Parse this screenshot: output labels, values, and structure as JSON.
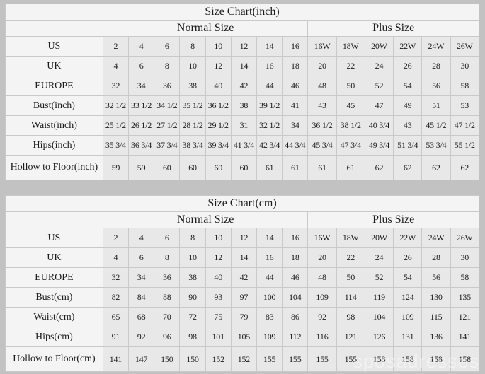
{
  "watermark": {
    "text": "sposadresses"
  },
  "colors": {
    "page_background": "#c2c2c2",
    "header_cell_background": "#f4f4f4",
    "value_cell_background": "#e8e8e8",
    "grid_border": "#c9c9c9",
    "text": "#1c1c1c"
  },
  "chart_data": [
    {
      "type": "table",
      "title": "Size Chart(inch)",
      "column_groups": [
        {
          "label": "Normal Size",
          "span": 8
        },
        {
          "label": "Plus Size",
          "span": 6
        }
      ],
      "rows": [
        {
          "label": "US",
          "values": [
            "2",
            "4",
            "6",
            "8",
            "10",
            "12",
            "14",
            "16",
            "16W",
            "18W",
            "20W",
            "22W",
            "24W",
            "26W"
          ]
        },
        {
          "label": "UK",
          "values": [
            "4",
            "6",
            "8",
            "10",
            "12",
            "14",
            "16",
            "18",
            "20",
            "22",
            "24",
            "26",
            "28",
            "30"
          ]
        },
        {
          "label": "EUROPE",
          "values": [
            "32",
            "34",
            "36",
            "38",
            "40",
            "42",
            "44",
            "46",
            "48",
            "50",
            "52",
            "54",
            "56",
            "58"
          ]
        },
        {
          "label": "Bust(inch)",
          "values": [
            "32 1/2",
            "33 1/2",
            "34 1/2",
            "35 1/2",
            "36 1/2",
            "38",
            "39 1/2",
            "41",
            "43",
            "45",
            "47",
            "49",
            "51",
            "53"
          ]
        },
        {
          "label": "Waist(inch)",
          "values": [
            "25 1/2",
            "26 1/2",
            "27 1/2",
            "28 1/2",
            "29 1/2",
            "31",
            "32 1/2",
            "34",
            "36 1/2",
            "38 1/2",
            "40 3/4",
            "43",
            "45 1/2",
            "47 1/2"
          ]
        },
        {
          "label": "Hips(inch)",
          "values": [
            "35 3/4",
            "36 3/4",
            "37 3/4",
            "38 3/4",
            "39 3/4",
            "41 3/4",
            "42 3/4",
            "44 3/4",
            "45 3/4",
            "47 3/4",
            "49 3/4",
            "51 3/4",
            "53 3/4",
            "55 1/2"
          ]
        },
        {
          "label": "Hollow to Floor(inch)",
          "values": [
            "59",
            "59",
            "60",
            "60",
            "60",
            "60",
            "61",
            "61",
            "61",
            "61",
            "62",
            "62",
            "62",
            "62"
          ]
        }
      ]
    },
    {
      "type": "table",
      "title": "Size Chart(cm)",
      "column_groups": [
        {
          "label": "Normal Size",
          "span": 8
        },
        {
          "label": "Plus Size",
          "span": 6
        }
      ],
      "rows": [
        {
          "label": "US",
          "values": [
            "2",
            "4",
            "6",
            "8",
            "10",
            "12",
            "14",
            "16",
            "16W",
            "18W",
            "20W",
            "22W",
            "24W",
            "26W"
          ]
        },
        {
          "label": "UK",
          "values": [
            "4",
            "6",
            "8",
            "10",
            "12",
            "14",
            "16",
            "18",
            "20",
            "22",
            "24",
            "26",
            "28",
            "30"
          ]
        },
        {
          "label": "EUROPE",
          "values": [
            "32",
            "34",
            "36",
            "38",
            "40",
            "42",
            "44",
            "46",
            "48",
            "50",
            "52",
            "54",
            "56",
            "58"
          ]
        },
        {
          "label": "Bust(cm)",
          "values": [
            "82",
            "84",
            "88",
            "90",
            "93",
            "97",
            "100",
            "104",
            "109",
            "114",
            "119",
            "124",
            "130",
            "135"
          ]
        },
        {
          "label": "Waist(cm)",
          "values": [
            "65",
            "68",
            "70",
            "72",
            "75",
            "79",
            "83",
            "86",
            "92",
            "98",
            "104",
            "109",
            "115",
            "121"
          ]
        },
        {
          "label": "Hips(cm)",
          "values": [
            "91",
            "92",
            "96",
            "98",
            "101",
            "105",
            "109",
            "112",
            "116",
            "121",
            "126",
            "131",
            "136",
            "141"
          ]
        },
        {
          "label": "Hollow to Floor(cm)",
          "values": [
            "141",
            "147",
            "150",
            "150",
            "152",
            "152",
            "155",
            "155",
            "155",
            "155",
            "158",
            "158",
            "158",
            "158"
          ]
        }
      ]
    }
  ]
}
